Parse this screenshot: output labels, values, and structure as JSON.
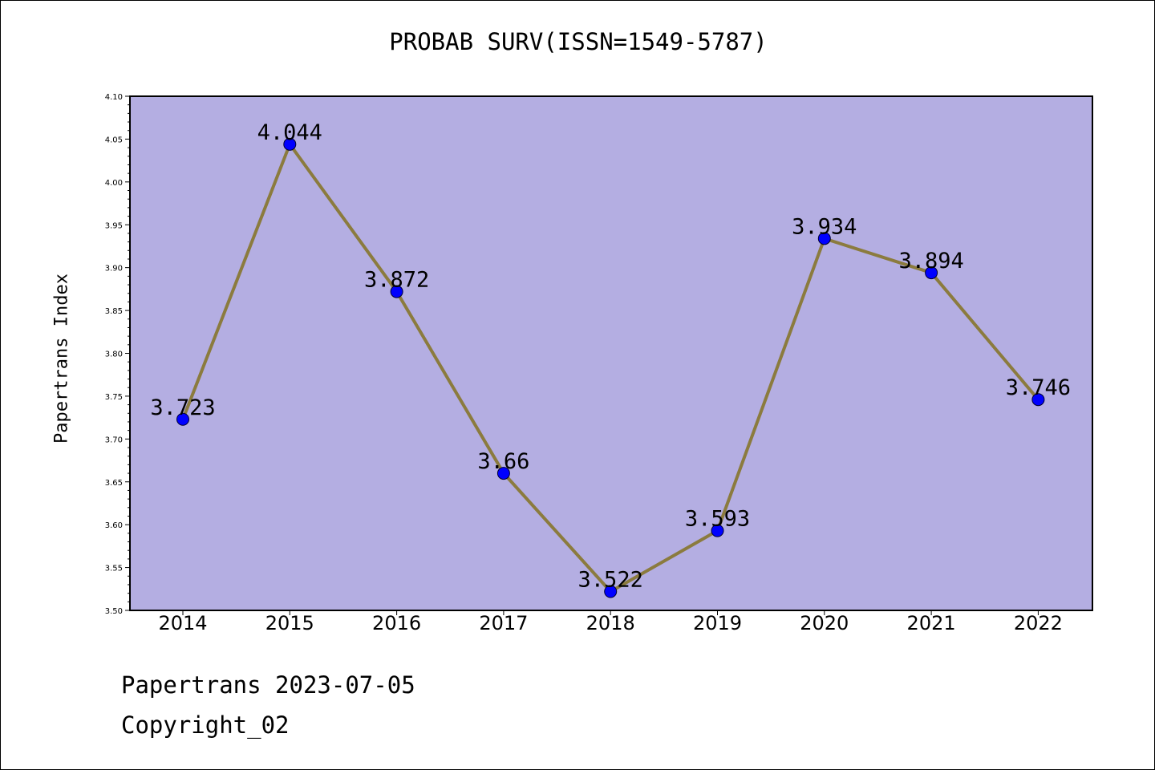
{
  "title": "PROBAB SURV(ISSN=1549-5787)",
  "footer": {
    "date_line": "Papertrans 2023-07-05",
    "copyright": "Copyright_02"
  },
  "colors": {
    "plot_background": "#b4aee2",
    "line": "#8b7b3e",
    "marker": "#0000ff"
  },
  "chart_data": {
    "type": "line",
    "title": "PROBAB SURV(ISSN=1549-5787)",
    "xlabel": "",
    "ylabel": "Papertrans Index",
    "categories": [
      "2014",
      "2015",
      "2016",
      "2017",
      "2018",
      "2019",
      "2020",
      "2021",
      "2022"
    ],
    "values": [
      3.723,
      4.044,
      3.872,
      3.66,
      3.522,
      3.593,
      3.934,
      3.894,
      3.746
    ],
    "data_labels": [
      "3.723",
      "4.044",
      "3.872",
      "3.66",
      "3.522",
      "3.593",
      "3.934",
      "3.894",
      "3.746"
    ],
    "ylim": [
      3.5,
      4.1
    ],
    "y_ticks": [
      "3.50",
      "3.55",
      "3.60",
      "3.65",
      "3.70",
      "3.75",
      "3.80",
      "3.85",
      "3.90",
      "3.95",
      "4.00",
      "4.05",
      "4.10"
    ],
    "grid": false,
    "legend": "none"
  }
}
